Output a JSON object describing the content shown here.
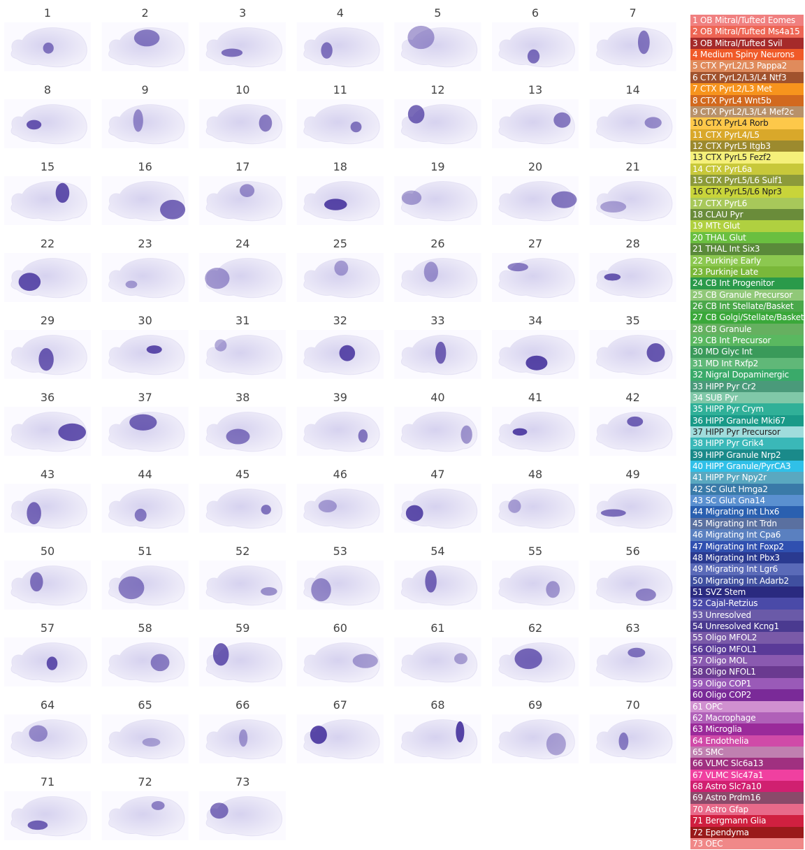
{
  "panels": [
    "1",
    "2",
    "3",
    "4",
    "5",
    "6",
    "7",
    "8",
    "9",
    "10",
    "11",
    "12",
    "13",
    "14",
    "15",
    "16",
    "17",
    "18",
    "19",
    "20",
    "21",
    "22",
    "23",
    "24",
    "25",
    "26",
    "27",
    "28",
    "29",
    "30",
    "31",
    "32",
    "33",
    "34",
    "35",
    "36",
    "37",
    "38",
    "39",
    "40",
    "41",
    "42",
    "43",
    "44",
    "45",
    "46",
    "47",
    "48",
    "49",
    "50",
    "51",
    "52",
    "53",
    "54",
    "55",
    "56",
    "57",
    "58",
    "59",
    "60",
    "61",
    "62",
    "63",
    "64",
    "65",
    "66",
    "67",
    "68",
    "69",
    "70",
    "71",
    "72",
    "73"
  ],
  "legend": [
    {
      "label": "1 OB Mitral/Tufted Eomes",
      "color": "#f08080"
    },
    {
      "label": "2 OB Mitral/Tufted Ms4a15",
      "color": "#ee6655"
    },
    {
      "label": "3 OB Mitral/Tufted Svil",
      "color": "#a52a2a"
    },
    {
      "label": "4 Medium Spiny Neurons",
      "color": "#f05a28"
    },
    {
      "label": "5 CTX PyrL2/L3 Pappa2",
      "color": "#e08b5c"
    },
    {
      "label": "6 CTX PyrL2/L3/L4 Ntf3",
      "color": "#a0522d"
    },
    {
      "label": "7 CTX PyrL2/L3 Met",
      "color": "#f7941d"
    },
    {
      "label": "8 CTX PyrL4 Wnt5b",
      "color": "#d2691e"
    },
    {
      "label": "9 CTX PyrL2/L3/L4 Mef2c",
      "color": "#b8916a"
    },
    {
      "label": "10 CTX PyrL4 Rorb",
      "color": "#fdc84a"
    },
    {
      "label": "11 CTX PyrL4/L5",
      "color": "#d9a82a"
    },
    {
      "label": "12 CTX PyrL5 Itgb3",
      "color": "#9c8a2e"
    },
    {
      "label": "13 CTX PyrL5 Fezf2",
      "color": "#f5f07a"
    },
    {
      "label": "14 CTX PyrL6a",
      "color": "#c8c83a"
    },
    {
      "label": "15 CTX PyrL5/L6 Sulf1",
      "color": "#8c9a3a"
    },
    {
      "label": "16 CTX PyrL5/L6 Npr3",
      "color": "#c8d43a"
    },
    {
      "label": "17 CTX PyrL6",
      "color": "#a8c85a"
    },
    {
      "label": "18 CLAU Pyr",
      "color": "#6a8c3a"
    },
    {
      "label": "19 MTt Glut",
      "color": "#b0d040"
    },
    {
      "label": "20 THAL Glut",
      "color": "#6abf40"
    },
    {
      "label": "21 THAL Int Six3",
      "color": "#5a8a3a"
    },
    {
      "label": "22 Purkinje Early",
      "color": "#8cc850"
    },
    {
      "label": "23 Purkinje Late",
      "color": "#7ab83a"
    },
    {
      "label": "24 CB Int Progenitor",
      "color": "#2a9a4a"
    },
    {
      "label": "25 CB Granule Precursor",
      "color": "#90c878"
    },
    {
      "label": "26 CB Int Stellate/Basket",
      "color": "#4aa84a"
    },
    {
      "label": "27 CB Golgi/Stellate/Basket",
      "color": "#3aa83a"
    },
    {
      "label": "28 CB Granule",
      "color": "#66b060"
    },
    {
      "label": "29 CB Int Precursor",
      "color": "#5ab860"
    },
    {
      "label": "30 MD Glyc Int",
      "color": "#3a9a5a"
    },
    {
      "label": "31 MD Int Rxfp2",
      "color": "#60b878"
    },
    {
      "label": "32 Nigral Dopaminergic",
      "color": "#3aaa6a"
    },
    {
      "label": "33 HIPP Pyr Cr2",
      "color": "#4a9a7a"
    },
    {
      "label": "34 SUB Pyr",
      "color": "#80c8a8"
    },
    {
      "label": "35 HIPP Pyr Crym",
      "color": "#30b098"
    },
    {
      "label": "36 HIPP Granule Mki67",
      "color": "#1a9a88"
    },
    {
      "label": "37 HIPP Pyr Precursor",
      "color": "#a0dcdc"
    },
    {
      "label": "38 HIPP Pyr Grik4",
      "color": "#3ab8b8"
    },
    {
      "label": "39 HIPP Granule Nrp2",
      "color": "#1a8a8a"
    },
    {
      "label": "40 HIPP Granule/PyrCA3",
      "color": "#30c0e8"
    },
    {
      "label": "41 HIPP Pyr Npy2r",
      "color": "#5aa8c0"
    },
    {
      "label": "42 SC Glut Hmga2",
      "color": "#3a7aa8"
    },
    {
      "label": "43 SC Glut Gna14",
      "color": "#5a90d0"
    },
    {
      "label": "44 Migrating Int Lhx6",
      "color": "#2a60b0"
    },
    {
      "label": "45 Migrating Int Trdn",
      "color": "#5a70a0"
    },
    {
      "label": "46 Migrating Int Cpa6",
      "color": "#5a80c0"
    },
    {
      "label": "47 Migrating Int Foxp2",
      "color": "#3050b0"
    },
    {
      "label": "48 Migrating Int Pbx3",
      "color": "#2a3a90"
    },
    {
      "label": "49 Migrating Int Lgr6",
      "color": "#5a6ab8"
    },
    {
      "label": "50 Migrating Int Adarb2",
      "color": "#4050a0"
    },
    {
      "label": "51 SVZ Stem",
      "color": "#2a2a80"
    },
    {
      "label": "52 Cajal-Retzius",
      "color": "#4a4aa8"
    },
    {
      "label": "53 Unresolved",
      "color": "#6a5aa8"
    },
    {
      "label": "54 Unresolved Kcng1",
      "color": "#4a3a90"
    },
    {
      "label": "55 Oligo MFOL2",
      "color": "#7a5aa8"
    },
    {
      "label": "56 Oligo MFOL1",
      "color": "#5a3a98"
    },
    {
      "label": "57 Oligo MOL",
      "color": "#8a5ab0"
    },
    {
      "label": "58 Oligo NFOL1",
      "color": "#6a3a90"
    },
    {
      "label": "59 Oligo COP1",
      "color": "#9a5ab8"
    },
    {
      "label": "60 Oligo COP2",
      "color": "#7a2a98"
    },
    {
      "label": "61 OPC",
      "color": "#d090d0"
    },
    {
      "label": "62 Macrophage",
      "color": "#b060b8"
    },
    {
      "label": "63 Microglia",
      "color": "#9a2a9a"
    },
    {
      "label": "64 Endothelia",
      "color": "#d04aa8"
    },
    {
      "label": "65 SMC",
      "color": "#c080b0"
    },
    {
      "label": "66 VLMC Slc6a13",
      "color": "#a03080"
    },
    {
      "label": "67 VLMC Slc47a1",
      "color": "#f040a0"
    },
    {
      "label": "68 Astro Slc7a10",
      "color": "#d02070"
    },
    {
      "label": "69 Astro Prdm16",
      "color": "#8a4a6a"
    },
    {
      "label": "70 Astro Gfap",
      "color": "#e86a8a"
    },
    {
      "label": "71 Bergmann Glia",
      "color": "#d02040"
    },
    {
      "label": "72 Ependyma",
      "color": "#9a1a1a"
    },
    {
      "label": "73 OEC",
      "color": "#f08888"
    }
  ]
}
